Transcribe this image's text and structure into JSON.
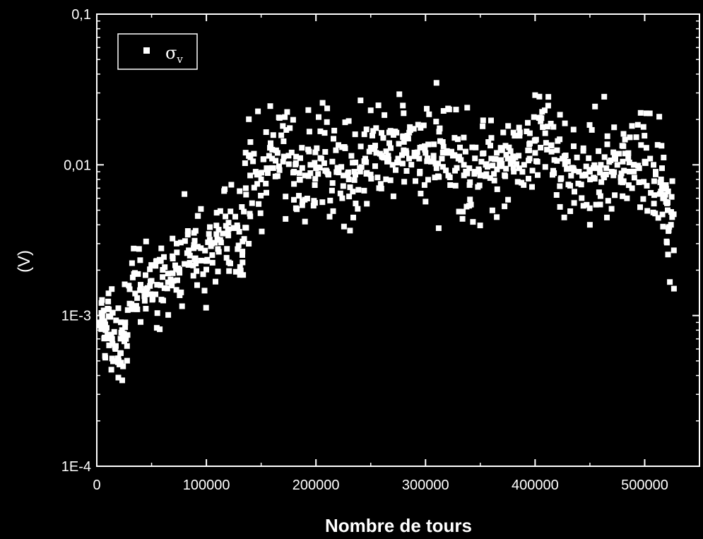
{
  "colors": {
    "background": "#000000",
    "foreground": "#ffffff",
    "points": "#ffffff"
  },
  "chart_data": {
    "type": "scatter",
    "title": "",
    "xlabel": "Nombre de tours",
    "ylabel": "(V)",
    "xlim": [
      0,
      550000
    ],
    "ylim": [
      0.0001,
      0.1
    ],
    "yscale": "log",
    "grid": false,
    "legend_position": "top-left",
    "x_ticks": [
      "0",
      "100000",
      "200000",
      "300000",
      "400000",
      "500000"
    ],
    "y_ticks": [
      "1E-4",
      "1E-3",
      "0,01",
      "0,1"
    ],
    "series": [
      {
        "name": "σ",
        "name_sub": "v",
        "marker": "square",
        "x": [
          2000,
          5000,
          8000,
          11000,
          14000,
          17000,
          20000,
          23000,
          26000,
          30000,
          35000,
          40000,
          45000,
          50000,
          55000,
          60000,
          65000,
          70000,
          75000,
          80000,
          85000,
          90000,
          95000,
          100000,
          105000,
          110000,
          115000,
          120000,
          125000,
          130000,
          133000,
          136000,
          140000,
          145000,
          150000,
          155000,
          160000,
          165000,
          170000,
          175000,
          180000,
          185000,
          190000,
          195000,
          200000,
          205000,
          210000,
          215000,
          220000,
          225000,
          230000,
          235000,
          240000,
          245000,
          250000,
          255000,
          260000,
          265000,
          270000,
          275000,
          280000,
          285000,
          290000,
          295000,
          300000,
          305000,
          310000,
          315000,
          320000,
          325000,
          330000,
          335000,
          340000,
          345000,
          350000,
          355000,
          360000,
          365000,
          370000,
          375000,
          380000,
          385000,
          390000,
          395000,
          400000,
          405000,
          410000,
          415000,
          420000,
          425000,
          430000,
          435000,
          440000,
          445000,
          450000,
          455000,
          460000,
          465000,
          470000,
          475000,
          480000,
          485000,
          490000,
          495000,
          500000,
          505000,
          510000,
          515000,
          518000,
          521000,
          524000
        ],
        "y": [
          0.0009,
          0.001,
          0.0008,
          0.0011,
          0.0007,
          0.0006,
          0.0005,
          0.0008,
          0.0009,
          0.0012,
          0.0014,
          0.0016,
          0.0015,
          0.0017,
          0.0016,
          0.0018,
          0.0019,
          0.0017,
          0.002,
          0.0022,
          0.0025,
          0.0024,
          0.0028,
          0.0023,
          0.003,
          0.0032,
          0.0035,
          0.0034,
          0.0038,
          0.0036,
          0.0031,
          0.007,
          0.0085,
          0.009,
          0.008,
          0.0095,
          0.011,
          0.012,
          0.0105,
          0.0115,
          0.009,
          0.008,
          0.0085,
          0.01,
          0.0095,
          0.011,
          0.009,
          0.0105,
          0.0095,
          0.0085,
          0.008,
          0.009,
          0.0095,
          0.011,
          0.013,
          0.012,
          0.0115,
          0.0105,
          0.01,
          0.011,
          0.0125,
          0.011,
          0.0115,
          0.013,
          0.012,
          0.0105,
          0.0095,
          0.011,
          0.012,
          0.0115,
          0.011,
          0.01,
          0.0095,
          0.009,
          0.0085,
          0.01,
          0.011,
          0.012,
          0.0125,
          0.011,
          0.0105,
          0.0115,
          0.01,
          0.011,
          0.012,
          0.013,
          0.014,
          0.0135,
          0.0125,
          0.011,
          0.0105,
          0.0095,
          0.009,
          0.0085,
          0.009,
          0.0095,
          0.01,
          0.0095,
          0.009,
          0.01,
          0.0105,
          0.011,
          0.01,
          0.0095,
          0.0105,
          0.011,
          0.009,
          0.008,
          0.006,
          0.005,
          0.004
        ],
        "outliers_x": [
          45000,
          80000,
          310000,
          312000,
          400000,
          365000,
          450000,
          520000,
          24000,
          190000,
          250000,
          280000
        ],
        "outliers_y": [
          0.0031,
          0.0064,
          0.035,
          0.0038,
          0.029,
          0.0045,
          0.004,
          0.0031,
          0.00046,
          0.0042,
          0.023,
          0.022
        ]
      }
    ]
  }
}
